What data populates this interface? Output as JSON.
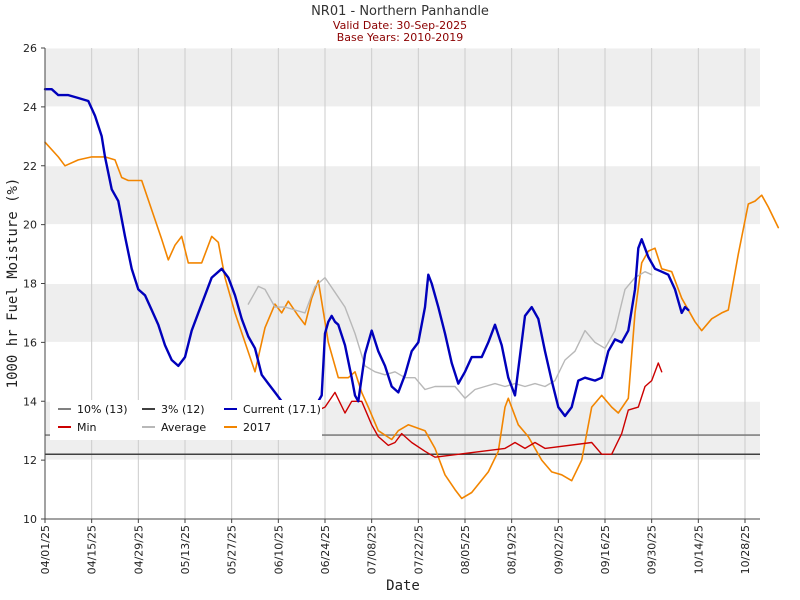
{
  "chart_data": {
    "type": "line",
    "title": "NR01 - Northern Panhandle",
    "subtitle_lines": [
      "Valid Date: 30-Sep-2025",
      "Base Years: 2010-2019"
    ],
    "xlabel": "Date",
    "ylabel": "1000 hr Fuel Moisture (%)",
    "x_range": [
      "2025-04-01",
      "2025-11-01"
    ],
    "ylim": [
      10,
      26
    ],
    "y_ticks": [
      10,
      12,
      14,
      16,
      18,
      20,
      22,
      24,
      26
    ],
    "x_ticks": [
      "04/01/25",
      "04/15/25",
      "04/29/25",
      "05/13/25",
      "05/27/25",
      "06/10/25",
      "06/24/25",
      "07/08/25",
      "07/22/25",
      "08/05/25",
      "08/19/25",
      "09/02/25",
      "09/16/25",
      "09/30/25",
      "10/14/25",
      "10/28/25"
    ],
    "y_bands": [
      [
        12,
        14
      ],
      [
        16,
        18
      ],
      [
        20,
        22
      ],
      [
        24,
        26
      ]
    ],
    "band_color": "#eeeeee",
    "grid": true,
    "legend_position": "lower-left",
    "legend": [
      {
        "label": "10% (13)",
        "color": "#808080"
      },
      {
        "label": "3% (12)",
        "color": "#404040"
      },
      {
        "label": "Current (17.1)",
        "color": "#0000bb"
      },
      {
        "label": "Min",
        "color": "#cc0000"
      },
      {
        "label": "Average",
        "color": "#b8b8b8"
      },
      {
        "label": "2017",
        "color": "#f28500"
      }
    ],
    "hlines": [
      {
        "name": "10% (13)",
        "y": 12.85,
        "color": "#808080"
      },
      {
        "name": "3% (12)",
        "y": 12.2,
        "color": "#404040"
      }
    ],
    "series": [
      {
        "name": "2017",
        "color": "#f28500",
        "width": 1.6,
        "points": [
          [
            "2025-04-01",
            22.8
          ],
          [
            "2025-04-05",
            22.3
          ],
          [
            "2025-04-07",
            22.0
          ],
          [
            "2025-04-11",
            22.2
          ],
          [
            "2025-04-15",
            22.3
          ],
          [
            "2025-04-19",
            22.3
          ],
          [
            "2025-04-22",
            22.2
          ],
          [
            "2025-04-24",
            21.6
          ],
          [
            "2025-04-26",
            21.5
          ],
          [
            "2025-04-30",
            21.5
          ],
          [
            "2025-05-03",
            20.5
          ],
          [
            "2025-05-06",
            19.5
          ],
          [
            "2025-05-08",
            18.8
          ],
          [
            "2025-05-10",
            19.3
          ],
          [
            "2025-05-12",
            19.6
          ],
          [
            "2025-05-14",
            18.7
          ],
          [
            "2025-05-18",
            18.7
          ],
          [
            "2025-05-21",
            19.6
          ],
          [
            "2025-05-23",
            19.4
          ],
          [
            "2025-05-25",
            18.2
          ],
          [
            "2025-05-28",
            17.0
          ],
          [
            "2025-05-31",
            16.0
          ],
          [
            "2025-06-03",
            15.0
          ],
          [
            "2025-06-06",
            16.5
          ],
          [
            "2025-06-09",
            17.3
          ],
          [
            "2025-06-11",
            17.0
          ],
          [
            "2025-06-13",
            17.4
          ],
          [
            "2025-06-16",
            16.9
          ],
          [
            "2025-06-18",
            16.6
          ],
          [
            "2025-06-20",
            17.5
          ],
          [
            "2025-06-22",
            18.1
          ],
          [
            "2025-06-25",
            16.0
          ],
          [
            "2025-06-28",
            14.8
          ],
          [
            "2025-07-01",
            14.8
          ],
          [
            "2025-07-03",
            15.0
          ],
          [
            "2025-07-05",
            14.3
          ],
          [
            "2025-07-07",
            13.8
          ],
          [
            "2025-07-10",
            13.0
          ],
          [
            "2025-07-14",
            12.7
          ],
          [
            "2025-07-16",
            13.0
          ],
          [
            "2025-07-19",
            13.2
          ],
          [
            "2025-07-24",
            13.0
          ],
          [
            "2025-07-27",
            12.4
          ],
          [
            "2025-07-30",
            11.5
          ],
          [
            "2025-08-02",
            11.0
          ],
          [
            "2025-08-04",
            10.7
          ],
          [
            "2025-08-07",
            10.9
          ],
          [
            "2025-08-12",
            11.6
          ],
          [
            "2025-08-15",
            12.3
          ],
          [
            "2025-08-17",
            13.8
          ],
          [
            "2025-08-18",
            14.1
          ],
          [
            "2025-08-21",
            13.2
          ],
          [
            "2025-08-24",
            12.8
          ],
          [
            "2025-08-28",
            12.0
          ],
          [
            "2025-08-31",
            11.6
          ],
          [
            "2025-09-03",
            11.5
          ],
          [
            "2025-09-06",
            11.3
          ],
          [
            "2025-09-09",
            12.0
          ],
          [
            "2025-09-12",
            13.8
          ],
          [
            "2025-09-15",
            14.2
          ],
          [
            "2025-09-18",
            13.8
          ],
          [
            "2025-09-20",
            13.6
          ],
          [
            "2025-09-23",
            14.1
          ],
          [
            "2025-09-25",
            17.0
          ],
          [
            "2025-09-27",
            18.7
          ],
          [
            "2025-09-29",
            19.1
          ],
          [
            "2025-10-01",
            19.2
          ],
          [
            "2025-10-03",
            18.5
          ],
          [
            "2025-10-06",
            18.4
          ],
          [
            "2025-10-09",
            17.5
          ],
          [
            "2025-10-13",
            16.7
          ],
          [
            "2025-10-15",
            16.4
          ],
          [
            "2025-10-18",
            16.8
          ],
          [
            "2025-10-21",
            17.0
          ],
          [
            "2025-10-23",
            17.1
          ],
          [
            "2025-10-26",
            19.0
          ],
          [
            "2025-10-29",
            20.7
          ],
          [
            "2025-10-31",
            20.8
          ],
          [
            "2025-11-02",
            21.0
          ],
          [
            "2025-11-04",
            20.6
          ],
          [
            "2025-11-07",
            19.9
          ]
        ]
      },
      {
        "name": "Average",
        "color": "#b8b8b8",
        "width": 1.4,
        "points": [
          [
            "2025-06-01",
            17.3
          ],
          [
            "2025-06-04",
            17.9
          ],
          [
            "2025-06-06",
            17.8
          ],
          [
            "2025-06-09",
            17.2
          ],
          [
            "2025-06-12",
            17.2
          ],
          [
            "2025-06-15",
            17.1
          ],
          [
            "2025-06-18",
            17.0
          ],
          [
            "2025-06-21",
            17.9
          ],
          [
            "2025-06-24",
            18.2
          ],
          [
            "2025-06-27",
            17.7
          ],
          [
            "2025-06-30",
            17.2
          ],
          [
            "2025-07-03",
            16.3
          ],
          [
            "2025-07-06",
            15.2
          ],
          [
            "2025-07-09",
            15.0
          ],
          [
            "2025-07-12",
            14.9
          ],
          [
            "2025-07-15",
            15.0
          ],
          [
            "2025-07-18",
            14.8
          ],
          [
            "2025-07-21",
            14.8
          ],
          [
            "2025-07-24",
            14.4
          ],
          [
            "2025-07-27",
            14.5
          ],
          [
            "2025-07-30",
            14.5
          ],
          [
            "2025-08-02",
            14.5
          ],
          [
            "2025-08-05",
            14.1
          ],
          [
            "2025-08-08",
            14.4
          ],
          [
            "2025-08-11",
            14.5
          ],
          [
            "2025-08-14",
            14.6
          ],
          [
            "2025-08-17",
            14.5
          ],
          [
            "2025-08-20",
            14.6
          ],
          [
            "2025-08-23",
            14.5
          ],
          [
            "2025-08-26",
            14.6
          ],
          [
            "2025-08-29",
            14.5
          ],
          [
            "2025-09-01",
            14.7
          ],
          [
            "2025-09-04",
            15.4
          ],
          [
            "2025-09-07",
            15.7
          ],
          [
            "2025-09-10",
            16.4
          ],
          [
            "2025-09-13",
            16.0
          ],
          [
            "2025-09-16",
            15.8
          ],
          [
            "2025-09-19",
            16.4
          ],
          [
            "2025-09-22",
            17.8
          ],
          [
            "2025-09-25",
            18.2
          ],
          [
            "2025-09-28",
            18.4
          ],
          [
            "2025-09-30",
            18.3
          ]
        ]
      },
      {
        "name": "Min",
        "color": "#cc0000",
        "width": 1.4,
        "points": [
          [
            "2025-06-01",
            13.6
          ],
          [
            "2025-06-02",
            13.6
          ],
          [
            "2025-06-20",
            13.6
          ],
          [
            "2025-06-24",
            13.8
          ],
          [
            "2025-06-27",
            14.3
          ],
          [
            "2025-06-30",
            13.6
          ],
          [
            "2025-07-02",
            14.0
          ],
          [
            "2025-07-05",
            14.0
          ],
          [
            "2025-07-08",
            13.2
          ],
          [
            "2025-07-10",
            12.8
          ],
          [
            "2025-07-13",
            12.5
          ],
          [
            "2025-07-15",
            12.6
          ],
          [
            "2025-07-17",
            12.9
          ],
          [
            "2025-07-20",
            12.6
          ],
          [
            "2025-07-24",
            12.3
          ],
          [
            "2025-07-27",
            12.1
          ],
          [
            "2025-08-17",
            12.4
          ],
          [
            "2025-08-20",
            12.6
          ],
          [
            "2025-08-23",
            12.4
          ],
          [
            "2025-08-26",
            12.6
          ],
          [
            "2025-08-29",
            12.4
          ],
          [
            "2025-09-12",
            12.6
          ],
          [
            "2025-09-15",
            12.2
          ],
          [
            "2025-09-18",
            12.2
          ],
          [
            "2025-09-21",
            12.9
          ],
          [
            "2025-09-23",
            13.7
          ],
          [
            "2025-09-26",
            13.8
          ],
          [
            "2025-09-28",
            14.5
          ],
          [
            "2025-09-30",
            14.7
          ],
          [
            "2025-10-02",
            15.3
          ],
          [
            "2025-10-03",
            15.0
          ]
        ]
      },
      {
        "name": "Current (17.1)",
        "color": "#0000bb",
        "width": 2.4,
        "points": [
          [
            "2025-04-01",
            24.6
          ],
          [
            "2025-04-03",
            24.6
          ],
          [
            "2025-04-05",
            24.4
          ],
          [
            "2025-04-08",
            24.4
          ],
          [
            "2025-04-11",
            24.3
          ],
          [
            "2025-04-14",
            24.2
          ],
          [
            "2025-04-16",
            23.7
          ],
          [
            "2025-04-18",
            23.0
          ],
          [
            "2025-04-19",
            22.3
          ],
          [
            "2025-04-21",
            21.2
          ],
          [
            "2025-04-23",
            20.8
          ],
          [
            "2025-04-25",
            19.6
          ],
          [
            "2025-04-27",
            18.5
          ],
          [
            "2025-04-29",
            17.8
          ],
          [
            "2025-05-01",
            17.6
          ],
          [
            "2025-05-03",
            17.1
          ],
          [
            "2025-05-05",
            16.6
          ],
          [
            "2025-05-07",
            15.9
          ],
          [
            "2025-05-09",
            15.4
          ],
          [
            "2025-05-11",
            15.2
          ],
          [
            "2025-05-13",
            15.5
          ],
          [
            "2025-05-15",
            16.4
          ],
          [
            "2025-05-17",
            17.0
          ],
          [
            "2025-05-19",
            17.6
          ],
          [
            "2025-05-21",
            18.2
          ],
          [
            "2025-05-24",
            18.5
          ],
          [
            "2025-05-26",
            18.2
          ],
          [
            "2025-05-28",
            17.6
          ],
          [
            "2025-05-30",
            16.8
          ],
          [
            "2025-06-01",
            16.2
          ],
          [
            "2025-06-03",
            15.8
          ],
          [
            "2025-06-05",
            14.9
          ],
          [
            "2025-06-07",
            14.6
          ],
          [
            "2025-06-09",
            14.3
          ],
          [
            "2025-06-11",
            14.0
          ],
          [
            "2025-06-12",
            13.5
          ],
          [
            "2025-06-22",
            14.0
          ],
          [
            "2025-06-23",
            14.2
          ],
          [
            "2025-06-24",
            16.3
          ],
          [
            "2025-06-25",
            16.7
          ],
          [
            "2025-06-26",
            16.9
          ],
          [
            "2025-06-27",
            16.7
          ],
          [
            "2025-06-28",
            16.6
          ],
          [
            "2025-06-30",
            15.9
          ],
          [
            "2025-07-02",
            14.8
          ],
          [
            "2025-07-03",
            14.2
          ],
          [
            "2025-07-04",
            14.0
          ],
          [
            "2025-07-06",
            15.6
          ],
          [
            "2025-07-08",
            16.4
          ],
          [
            "2025-07-10",
            15.7
          ],
          [
            "2025-07-12",
            15.2
          ],
          [
            "2025-07-14",
            14.5
          ],
          [
            "2025-07-16",
            14.3
          ],
          [
            "2025-07-18",
            14.9
          ],
          [
            "2025-07-20",
            15.7
          ],
          [
            "2025-07-22",
            16.0
          ],
          [
            "2025-07-24",
            17.2
          ],
          [
            "2025-07-25",
            18.3
          ],
          [
            "2025-07-26",
            18.0
          ],
          [
            "2025-07-28",
            17.2
          ],
          [
            "2025-07-30",
            16.3
          ],
          [
            "2025-08-01",
            15.3
          ],
          [
            "2025-08-03",
            14.6
          ],
          [
            "2025-08-05",
            15.0
          ],
          [
            "2025-08-07",
            15.5
          ],
          [
            "2025-08-10",
            15.5
          ],
          [
            "2025-08-12",
            16.0
          ],
          [
            "2025-08-14",
            16.6
          ],
          [
            "2025-08-16",
            15.9
          ],
          [
            "2025-08-18",
            14.8
          ],
          [
            "2025-08-20",
            14.2
          ],
          [
            "2025-08-23",
            16.9
          ],
          [
            "2025-08-25",
            17.2
          ],
          [
            "2025-08-27",
            16.8
          ],
          [
            "2025-08-29",
            15.7
          ],
          [
            "2025-08-31",
            14.7
          ],
          [
            "2025-09-02",
            13.8
          ],
          [
            "2025-09-04",
            13.5
          ],
          [
            "2025-09-06",
            13.8
          ],
          [
            "2025-09-08",
            14.7
          ],
          [
            "2025-09-10",
            14.8
          ],
          [
            "2025-09-13",
            14.7
          ],
          [
            "2025-09-15",
            14.8
          ],
          [
            "2025-09-17",
            15.7
          ],
          [
            "2025-09-19",
            16.1
          ],
          [
            "2025-09-21",
            16.0
          ],
          [
            "2025-09-23",
            16.4
          ],
          [
            "2025-09-25",
            17.8
          ],
          [
            "2025-09-26",
            19.2
          ],
          [
            "2025-09-27",
            19.5
          ],
          [
            "2025-09-29",
            18.9
          ],
          [
            "2025-10-01",
            18.5
          ],
          [
            "2025-10-03",
            18.4
          ],
          [
            "2025-10-05",
            18.3
          ],
          [
            "2025-10-07",
            17.8
          ],
          [
            "2025-10-09",
            17.0
          ],
          [
            "2025-10-10",
            17.2
          ],
          [
            "2025-10-11",
            17.1
          ]
        ]
      }
    ]
  }
}
